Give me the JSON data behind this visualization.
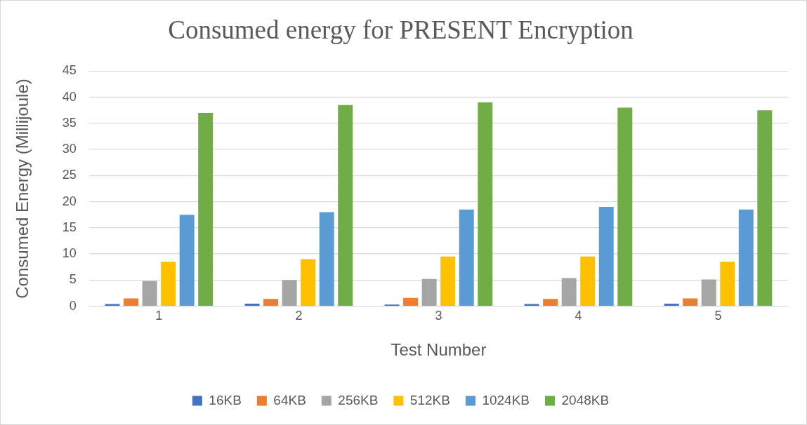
{
  "chart_data": {
    "type": "bar",
    "title": "Consumed energy for PRESENT Encryption",
    "xlabel": "Test Number",
    "ylabel": "Consumed Energy (Millijoule)",
    "categories": [
      "1",
      "2",
      "3",
      "4",
      "5"
    ],
    "series": [
      {
        "name": "16KB",
        "color": "#4472c4",
        "values": [
          0.4,
          0.5,
          0.3,
          0.4,
          0.5
        ]
      },
      {
        "name": "64KB",
        "color": "#ed7d31",
        "values": [
          1.5,
          1.4,
          1.6,
          1.4,
          1.5
        ]
      },
      {
        "name": "256KB",
        "color": "#a5a5a5",
        "values": [
          4.8,
          5.0,
          5.2,
          5.4,
          5.1
        ]
      },
      {
        "name": "512KB",
        "color": "#ffc000",
        "values": [
          8.5,
          9.0,
          9.5,
          9.5,
          8.5
        ]
      },
      {
        "name": "1024KB",
        "color": "#5b9bd5",
        "values": [
          17.5,
          18.0,
          18.5,
          19.0,
          18.5
        ]
      },
      {
        "name": "2048KB",
        "color": "#70ad47",
        "values": [
          37.0,
          38.5,
          39.0,
          38.0,
          37.5
        ]
      }
    ],
    "ylim": [
      0,
      45
    ],
    "yticks": [
      0,
      5,
      10,
      15,
      20,
      25,
      30,
      35,
      40,
      45
    ],
    "grid": "y",
    "legend": "bottom"
  }
}
